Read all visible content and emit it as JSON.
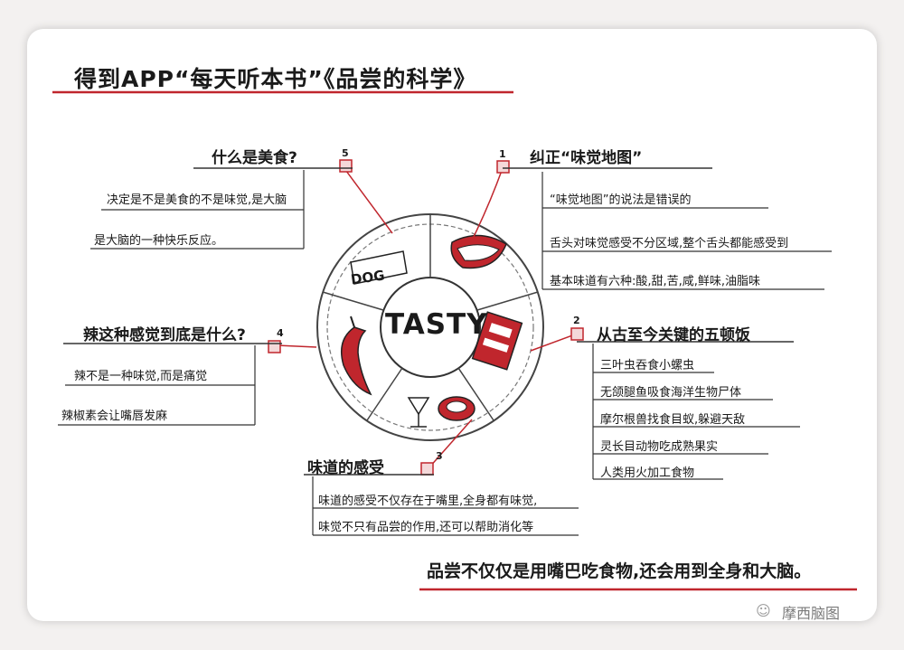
{
  "title": "得到APP“每天听本书”《品尝的科学》",
  "center": {
    "label": "TASTY",
    "dog_label": "DOG"
  },
  "branches": [
    {
      "number": "1",
      "heading": "纠正“味觉地图”",
      "notes": [
        "“味觉地图”的说法是错误的",
        "舌头对味觉感受不分区域,整个舌头都能感受到",
        "基本味道有六种:酸,甜,苦,咸,鲜味,油脂味"
      ]
    },
    {
      "number": "2",
      "heading": "从古至今关键的五顿饭",
      "notes": [
        "三叶虫吞食小螺虫",
        "无颌腿鱼吸食海洋生物尸体",
        "摩尔根兽找食目蚁,躲避天敌",
        "灵长目动物吃成熟果实",
        "人类用火加工食物"
      ]
    },
    {
      "number": "3",
      "heading": "味道的感受",
      "notes": [
        "味道的感受不仅存在于嘴里,全身都有味觉,",
        "味觉不只有品尝的作用,还可以帮助消化等"
      ]
    },
    {
      "number": "4",
      "heading": "辣这种感觉到底是什么?",
      "notes": [
        "辣不是一种味觉,而是痛觉",
        "辣椒素会让嘴唇发麻"
      ]
    },
    {
      "number": "5",
      "heading": "什么是美食?",
      "notes": [
        "决定是不是美食的不是味觉,是大脑",
        "是大脑的一种快乐反应。"
      ]
    }
  ],
  "summary": "品尝不仅仅是用嘴巴吃食物,还会用到全身和大脑。",
  "watermark": "摩西脑图",
  "colors": {
    "accent": "#c0262d",
    "ink": "#1a1a1a"
  }
}
